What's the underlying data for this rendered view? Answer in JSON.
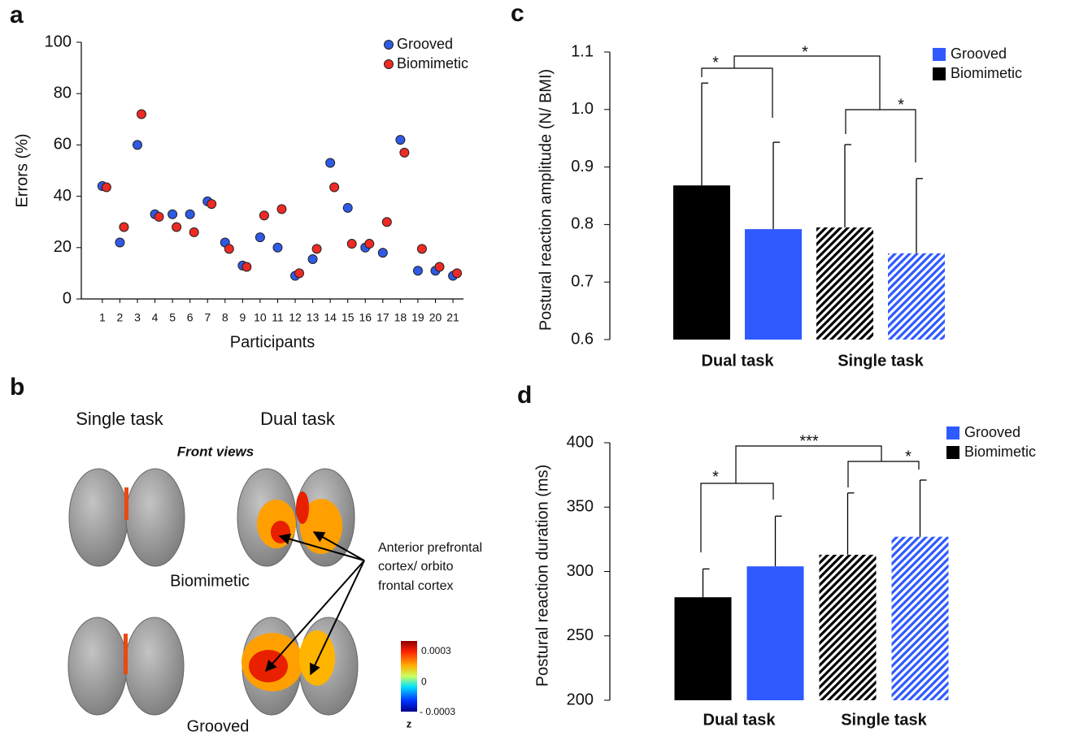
{
  "panel_labels": [
    "a",
    "b",
    "c",
    "d"
  ],
  "chart_data": [
    {
      "type": "scatter",
      "x": [
        1,
        2,
        3,
        4,
        5,
        6,
        7,
        8,
        9,
        10,
        11,
        12,
        13,
        14,
        15,
        16,
        17,
        18,
        19,
        20,
        21
      ],
      "series": [
        {
          "name": "Grooved",
          "color": "#2f5ae6",
          "values": [
            44,
            22,
            60,
            33,
            33,
            33,
            38,
            22,
            13,
            24,
            20,
            9,
            15.5,
            53,
            35.5,
            20,
            18,
            62,
            11,
            11,
            9
          ]
        },
        {
          "name": "Biomimetic",
          "color": "#ee2a24",
          "values": [
            43.5,
            28,
            72,
            32,
            28,
            26,
            37,
            19.5,
            12.5,
            32.5,
            35,
            10,
            19.5,
            43.5,
            21.5,
            21.5,
            30,
            57,
            19.5,
            12.5,
            10
          ]
        }
      ],
      "xlabel": "Participants",
      "ylabel": "Errors (%)",
      "xlim": [
        -0.2,
        21.6
      ],
      "ylim": [
        0,
        100
      ],
      "xticks": [
        1,
        2,
        3,
        4,
        5,
        6,
        7,
        8,
        9,
        10,
        11,
        12,
        13,
        14,
        15,
        16,
        17,
        18,
        19,
        20,
        21
      ],
      "yticks": [
        0,
        20,
        40,
        60,
        80,
        100
      ],
      "legend": "upper right"
    },
    {
      "type": "bar",
      "categories": [
        "Dual task",
        "Single task"
      ],
      "hatched": [
        false,
        true
      ],
      "series": [
        {
          "name": "Grooved",
          "color": "#2f5aff",
          "values": [
            0.792,
            0.75
          ],
          "errors": [
            0.151,
            0.13
          ]
        },
        {
          "name": "Biomimetic",
          "color": "#000000",
          "values": [
            0.868,
            0.795
          ],
          "errors": [
            0.178,
            0.144
          ]
        }
      ],
      "ylabel": "Postural reaction amplitude (N/ BMI)",
      "ylim": [
        0.6,
        1.1
      ],
      "yticks": [
        0.6,
        0.7,
        0.8,
        0.9,
        {
          "value": 1,
          "label": "1.0"
        },
        1.1
      ],
      "annotations": [
        "*",
        "*",
        "*"
      ],
      "legend": "upper right"
    },
    {
      "type": "bar",
      "categories": [
        "Dual task",
        "Single task"
      ],
      "hatched": [
        false,
        true
      ],
      "series": [
        {
          "name": "Grooved",
          "color": "#2f5aff",
          "values": [
            304,
            327
          ],
          "errors": [
            39,
            44
          ]
        },
        {
          "name": "Biomimetic",
          "color": "#000000",
          "values": [
            280,
            313
          ],
          "errors": [
            22,
            48
          ]
        }
      ],
      "ylabel": "Postural reaction duration (ms)",
      "ylim": [
        200,
        400
      ],
      "yticks": [
        200,
        250,
        300,
        350,
        400
      ],
      "annotations": [
        "*",
        "***",
        "*"
      ],
      "legend": "upper right"
    }
  ],
  "brain_panel": {
    "columns": [
      "Single task",
      "Dual task"
    ],
    "view": "Front views",
    "rows": [
      "Biomimetic",
      "Grooved"
    ],
    "annotation": [
      "Anterior prefrontal",
      "cortex/ orbito",
      "frontal cortex"
    ],
    "colorbar": {
      "ticks": [
        "0.0003",
        "0",
        "- 0.0003"
      ],
      "label": "z"
    }
  }
}
